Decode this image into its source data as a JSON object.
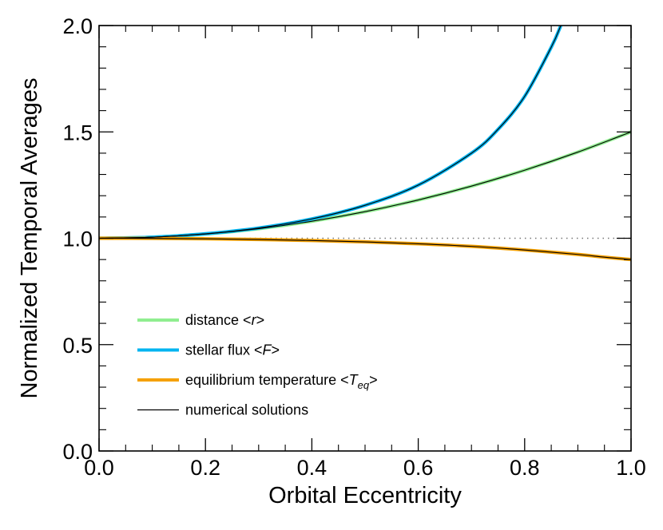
{
  "chart_data": {
    "type": "line",
    "title": "",
    "xlabel": "Orbital Eccentricity",
    "ylabel": "Normalized Temporal Averages",
    "xlim": [
      0.0,
      1.0
    ],
    "ylim": [
      0.0,
      2.0
    ],
    "xticks": [
      "0.0",
      "0.2",
      "0.4",
      "0.6",
      "0.8",
      "1.0"
    ],
    "yticks": [
      "0.0",
      "0.5",
      "1.0",
      "1.5",
      "2.0"
    ],
    "reference_line": {
      "y": 1.0,
      "style": "dotted",
      "color": "#777777"
    },
    "legend": {
      "placement": "lower-left",
      "entries": [
        {
          "key": "distance",
          "text": "distance <",
          "italic": "r",
          "suffix": ">",
          "color": "#90EE90"
        },
        {
          "key": "flux",
          "text": "stellar flux <",
          "italic": "F",
          "suffix": ">",
          "color": "#00B4F0"
        },
        {
          "key": "teq",
          "text": "equilibrium temperature <",
          "italic": "T",
          "sub": "eq",
          "suffix": ">",
          "color": "#F5A000"
        },
        {
          "key": "numerical",
          "text": "numerical solutions",
          "color": "#000000"
        }
      ]
    },
    "series": [
      {
        "name": "distance <r>",
        "color": "#90EE90",
        "x": [
          0.0,
          0.1,
          0.2,
          0.3,
          0.4,
          0.5,
          0.6,
          0.7,
          0.8,
          0.9,
          1.0
        ],
        "y": [
          1.0,
          1.005,
          1.02,
          1.045,
          1.08,
          1.125,
          1.18,
          1.245,
          1.32,
          1.405,
          1.5
        ]
      },
      {
        "name": "stellar flux <F>",
        "color": "#00B4F0",
        "x": [
          0.0,
          0.1,
          0.2,
          0.3,
          0.4,
          0.5,
          0.6,
          0.7,
          0.75,
          0.8,
          0.85,
          0.868
        ],
        "y": [
          1.0,
          1.005,
          1.021,
          1.048,
          1.091,
          1.155,
          1.25,
          1.4,
          1.512,
          1.667,
          1.898,
          2.0
        ]
      },
      {
        "name": "equilibrium temperature <T_eq>",
        "color": "#F5A000",
        "x": [
          0.0,
          0.1,
          0.2,
          0.3,
          0.4,
          0.5,
          0.6,
          0.7,
          0.8,
          0.9,
          0.95,
          1.0
        ],
        "y": [
          1.0,
          0.9994,
          0.9975,
          0.9943,
          0.9895,
          0.983,
          0.974,
          0.962,
          0.945,
          0.924,
          0.911,
          0.9
        ]
      }
    ],
    "numerical_overlay": [
      "distance <r>",
      "stellar flux <F>",
      "equilibrium temperature <T_eq>"
    ]
  }
}
